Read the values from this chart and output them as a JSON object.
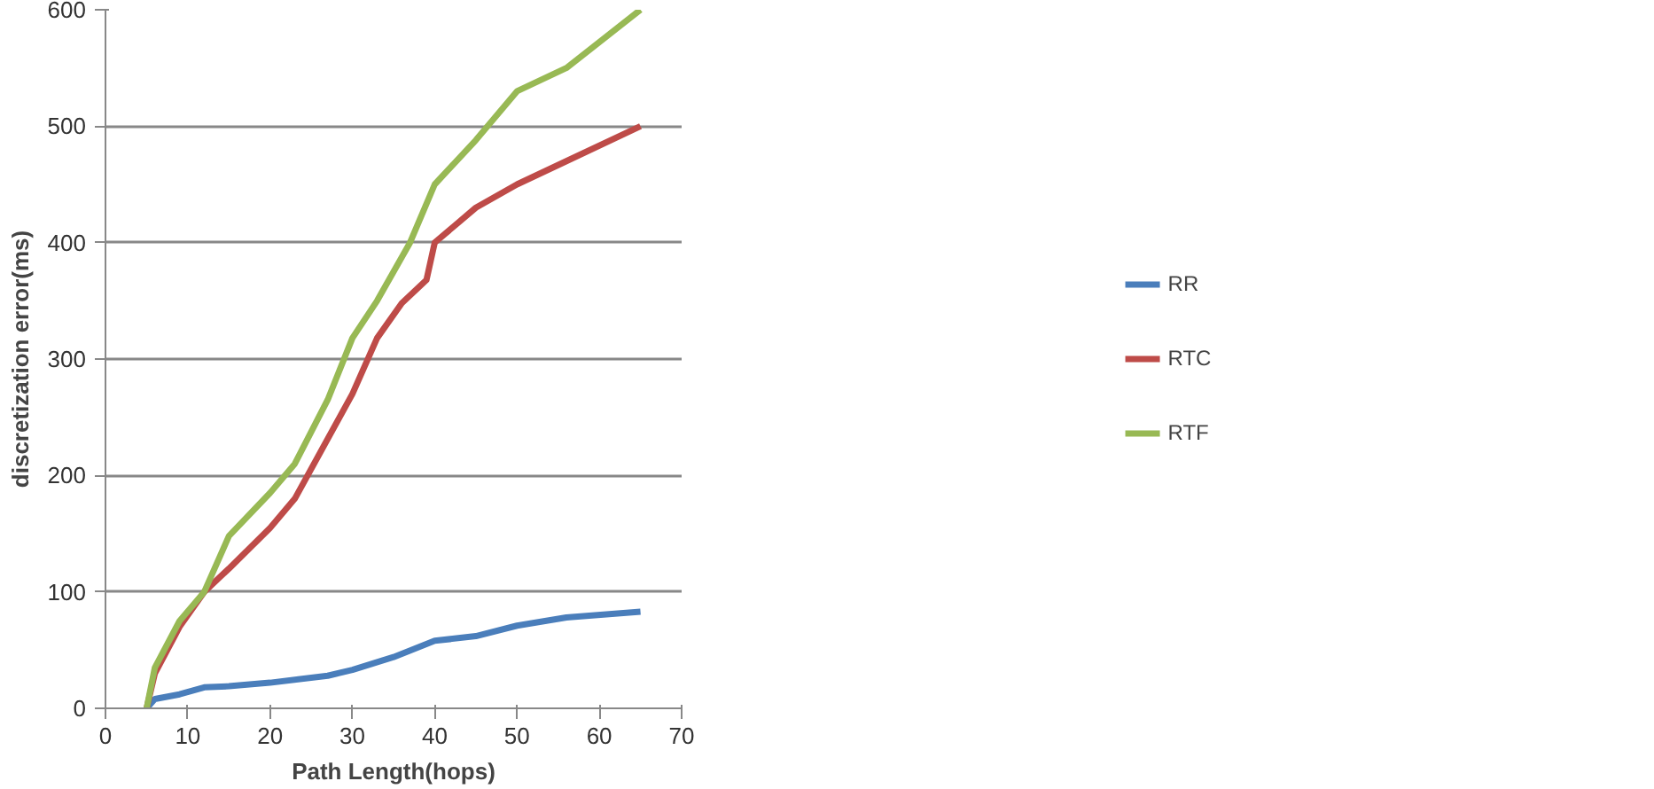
{
  "chart_data": {
    "type": "line",
    "xlabel": "Path Length(hops)",
    "ylabel": "discretization error(ms)",
    "xlim": [
      0,
      70
    ],
    "xticks": [
      0,
      10,
      20,
      30,
      40,
      50,
      60,
      70
    ],
    "ylim": [
      0,
      600
    ],
    "yticks": [
      0,
      100,
      200,
      300,
      400,
      500,
      600
    ],
    "grid": "y",
    "legend": "right",
    "series": [
      {
        "name": "RR",
        "color": "#4a7ebb",
        "x": [
          5,
          6,
          9,
          12,
          15,
          20,
          27,
          30,
          35,
          40,
          45,
          50,
          56,
          65
        ],
        "values": [
          0,
          8,
          12,
          18,
          19,
          22,
          28,
          33,
          44,
          58,
          62,
          71,
          78,
          83
        ]
      },
      {
        "name": "RTC",
        "color": "#be4b48",
        "x": [
          5,
          6,
          9,
          12,
          15,
          20,
          23,
          30,
          33,
          36,
          39,
          40,
          45,
          50,
          56,
          65
        ],
        "values": [
          0,
          30,
          70,
          100,
          120,
          155,
          180,
          270,
          318,
          348,
          368,
          400,
          430,
          450,
          470,
          500
        ]
      },
      {
        "name": "RTF",
        "color": "#98b954",
        "x": [
          5,
          6,
          9,
          12,
          15,
          20,
          23,
          27,
          30,
          33,
          37,
          40,
          45,
          50,
          56,
          65
        ],
        "values": [
          0,
          35,
          75,
          100,
          148,
          185,
          210,
          265,
          318,
          350,
          400,
          450,
          488,
          530,
          550,
          600
        ]
      }
    ]
  }
}
